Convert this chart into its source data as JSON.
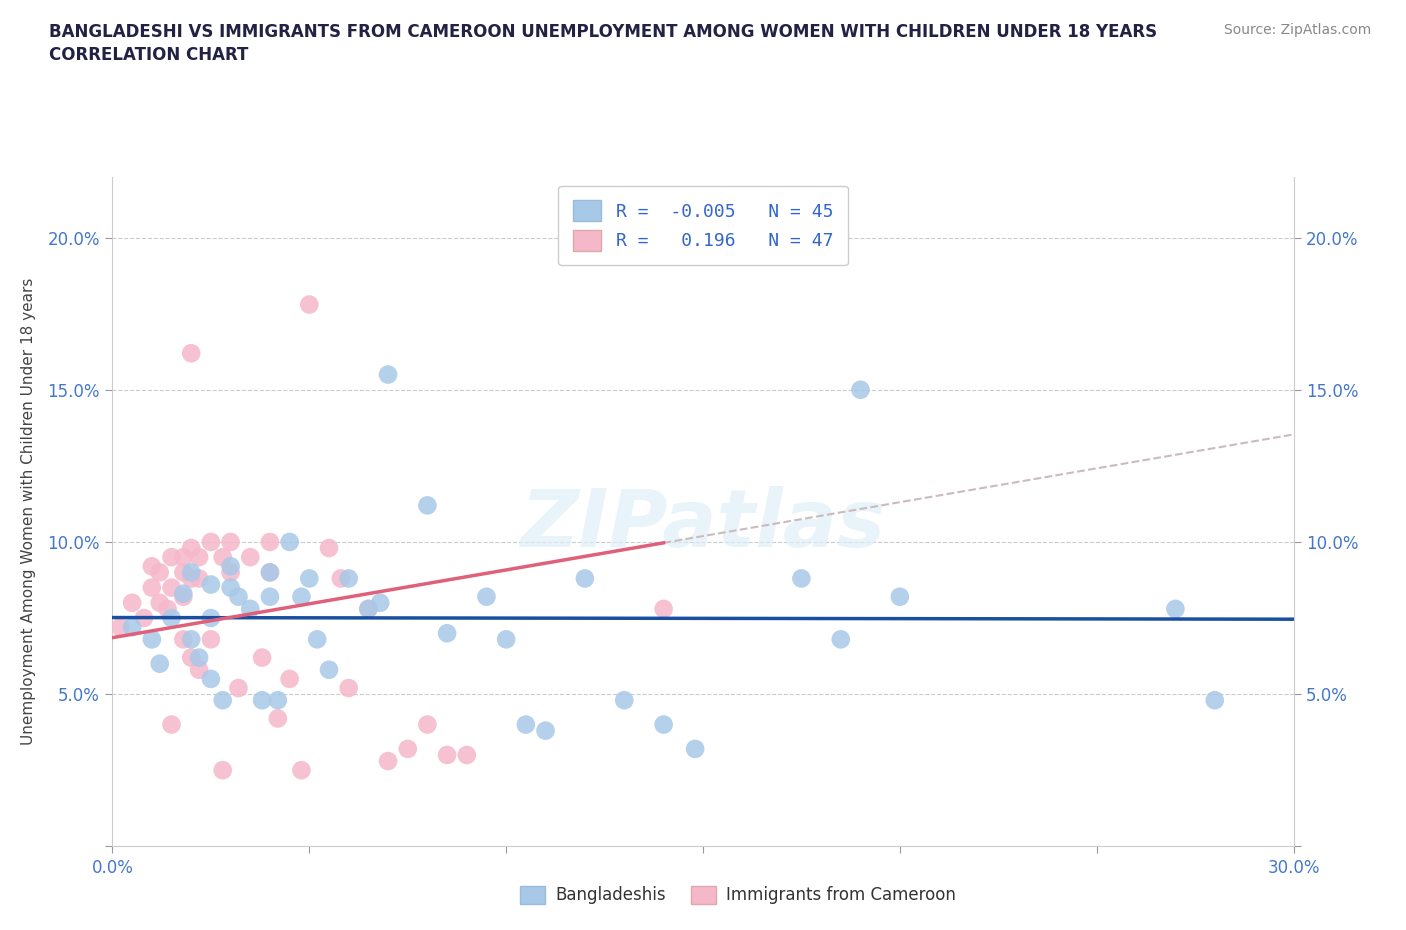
{
  "title_line1": "BANGLADESHI VS IMMIGRANTS FROM CAMEROON UNEMPLOYMENT AMONG WOMEN WITH CHILDREN UNDER 18 YEARS",
  "title_line2": "CORRELATION CHART",
  "source": "Source: ZipAtlas.com",
  "ylabel": "Unemployment Among Women with Children Under 18 years",
  "xlim": [
    0.0,
    0.3
  ],
  "ylim": [
    0.0,
    0.22
  ],
  "blue_R": -0.005,
  "blue_N": 45,
  "pink_R": 0.196,
  "pink_N": 47,
  "blue_color": "#a8c8e8",
  "pink_color": "#f5b8ca",
  "blue_line_color": "#1a4fa0",
  "pink_line_color": "#e0607a",
  "pink_dash_color": "#ccbbbb",
  "watermark": "ZIPatlas",
  "blue_scatter_x": [
    0.005,
    0.01,
    0.012,
    0.015,
    0.018,
    0.02,
    0.02,
    0.022,
    0.025,
    0.025,
    0.025,
    0.028,
    0.03,
    0.03,
    0.032,
    0.035,
    0.038,
    0.04,
    0.04,
    0.042,
    0.045,
    0.048,
    0.05,
    0.052,
    0.055,
    0.06,
    0.065,
    0.068,
    0.07,
    0.08,
    0.085,
    0.095,
    0.1,
    0.105,
    0.11,
    0.12,
    0.13,
    0.14,
    0.148,
    0.175,
    0.185,
    0.19,
    0.2,
    0.27,
    0.28
  ],
  "blue_scatter_y": [
    0.072,
    0.068,
    0.06,
    0.075,
    0.083,
    0.09,
    0.068,
    0.062,
    0.086,
    0.075,
    0.055,
    0.048,
    0.092,
    0.085,
    0.082,
    0.078,
    0.048,
    0.09,
    0.082,
    0.048,
    0.1,
    0.082,
    0.088,
    0.068,
    0.058,
    0.088,
    0.078,
    0.08,
    0.155,
    0.112,
    0.07,
    0.082,
    0.068,
    0.04,
    0.038,
    0.088,
    0.048,
    0.04,
    0.032,
    0.088,
    0.068,
    0.15,
    0.082,
    0.078,
    0.048
  ],
  "pink_scatter_x": [
    0.002,
    0.005,
    0.008,
    0.01,
    0.01,
    0.012,
    0.012,
    0.014,
    0.015,
    0.015,
    0.015,
    0.018,
    0.018,
    0.018,
    0.018,
    0.02,
    0.02,
    0.02,
    0.02,
    0.022,
    0.022,
    0.022,
    0.025,
    0.025,
    0.028,
    0.028,
    0.03,
    0.03,
    0.032,
    0.035,
    0.038,
    0.04,
    0.04,
    0.042,
    0.045,
    0.048,
    0.05,
    0.055,
    0.058,
    0.06,
    0.065,
    0.07,
    0.075,
    0.08,
    0.085,
    0.09,
    0.14
  ],
  "pink_scatter_y": [
    0.072,
    0.08,
    0.075,
    0.092,
    0.085,
    0.09,
    0.08,
    0.078,
    0.095,
    0.085,
    0.04,
    0.095,
    0.09,
    0.082,
    0.068,
    0.162,
    0.098,
    0.088,
    0.062,
    0.095,
    0.088,
    0.058,
    0.1,
    0.068,
    0.095,
    0.025,
    0.1,
    0.09,
    0.052,
    0.095,
    0.062,
    0.1,
    0.09,
    0.042,
    0.055,
    0.025,
    0.178,
    0.098,
    0.088,
    0.052,
    0.078,
    0.028,
    0.032,
    0.04,
    0.03,
    0.03,
    0.078
  ]
}
